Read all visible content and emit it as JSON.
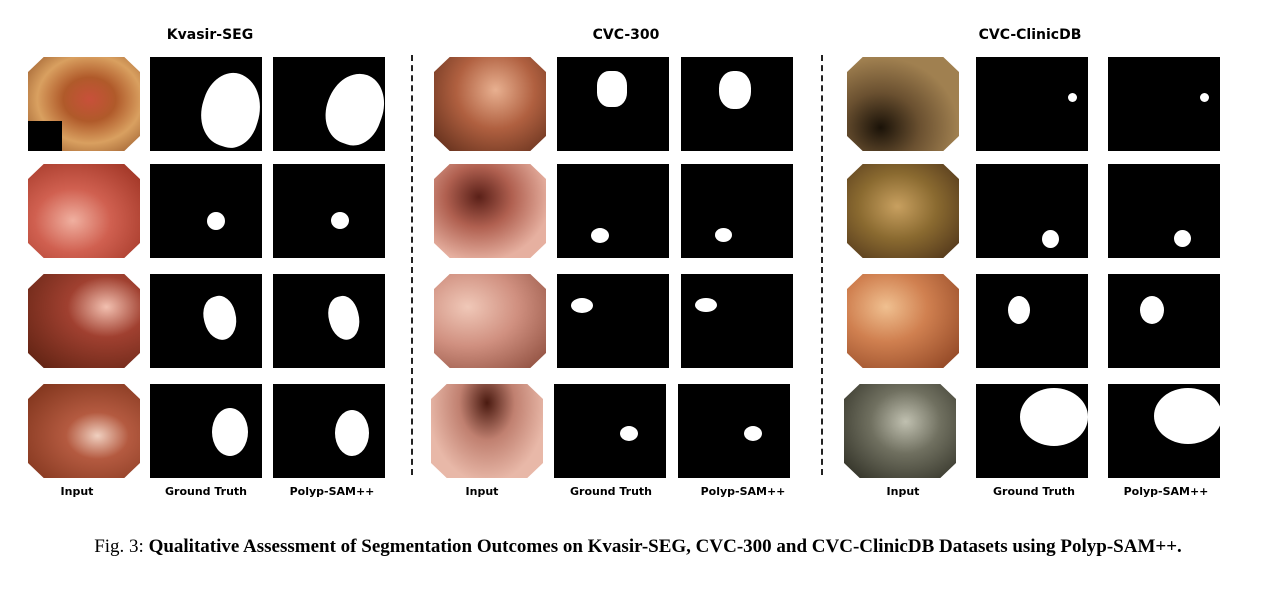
{
  "groups": [
    {
      "title": "Kvasir-SEG",
      "labels": [
        "Input",
        "Ground Truth",
        "Polyp-SAM++"
      ]
    },
    {
      "title": "CVC-300",
      "labels": [
        "Input",
        "Ground Truth",
        "Polyp-SAM++"
      ]
    },
    {
      "title": "CVC-ClinicDB",
      "labels": [
        "Input",
        "Ground Truth",
        "Polyp-SAM++"
      ]
    }
  ],
  "caption": {
    "prefix": "Fig. 3: ",
    "text": "Qualitative Assessment of Segmentation Outcomes on Kvasir-SEG, CVC-300 and CVC-ClinicDB Datasets using Polyp-SAM++."
  }
}
